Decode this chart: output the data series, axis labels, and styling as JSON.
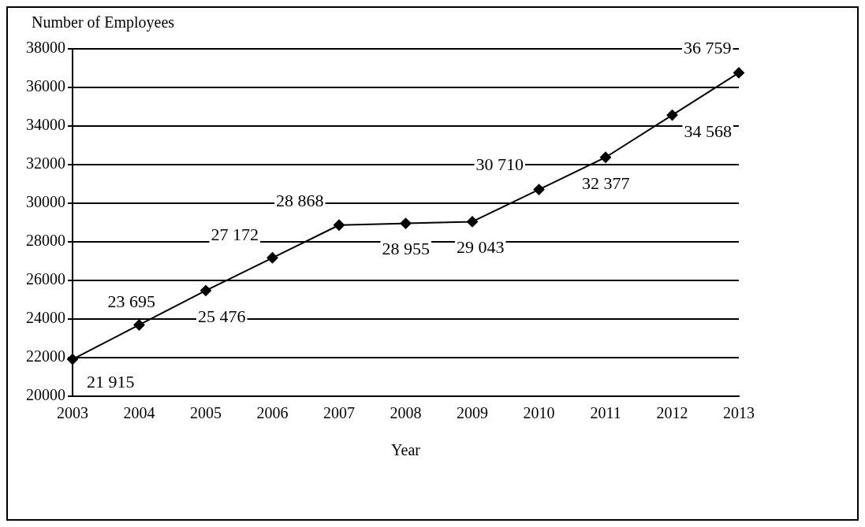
{
  "chart_data": {
    "type": "line",
    "ylabel": "Number of Employees",
    "xlabel": "Year",
    "categories": [
      "2003",
      "2004",
      "2005",
      "2006",
      "2007",
      "2008",
      "2009",
      "2010",
      "2011",
      "2012",
      "2013"
    ],
    "series": [
      {
        "color": "#000000",
        "values": [
          21915,
          23695,
          25476,
          27172,
          28868,
          28955,
          29043,
          30710,
          32377,
          34568,
          36759
        ],
        "value_labels": [
          "21 915",
          "23 695",
          "25 476",
          "27 172",
          "28 868",
          "28 955",
          "29 043",
          "30 710",
          "32 377",
          "34 568",
          "36 759"
        ]
      }
    ],
    "ylim": [
      20000,
      38000
    ],
    "yticks": [
      20000,
      22000,
      24000,
      26000,
      28000,
      30000,
      32000,
      34000,
      36000,
      38000
    ],
    "grid": "y",
    "legend": false,
    "marker": "diamond",
    "line_style": "solid"
  }
}
